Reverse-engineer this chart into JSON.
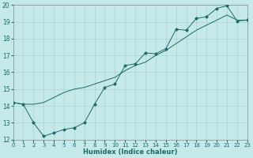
{
  "xlabel": "Humidex (Indice chaleur)",
  "xlim": [
    0,
    23
  ],
  "ylim": [
    12,
    20
  ],
  "xticks": [
    0,
    1,
    2,
    3,
    4,
    5,
    6,
    7,
    8,
    9,
    10,
    11,
    12,
    13,
    14,
    15,
    16,
    17,
    18,
    19,
    20,
    21,
    22,
    23
  ],
  "yticks": [
    12,
    13,
    14,
    15,
    16,
    17,
    18,
    19,
    20
  ],
  "background_color": "#c5e8e8",
  "grid_color": "#aacccc",
  "line_color": "#1a6b6b",
  "line1_x": [
    0,
    1,
    2,
    3,
    4,
    5,
    6,
    7,
    8,
    9,
    10,
    11,
    12,
    13,
    14,
    15,
    16,
    17,
    18,
    19,
    20,
    21,
    22,
    23
  ],
  "line1_y": [
    14.2,
    14.1,
    13.0,
    12.2,
    12.4,
    12.6,
    12.7,
    13.0,
    14.1,
    15.1,
    15.3,
    16.4,
    16.5,
    17.15,
    17.1,
    17.4,
    18.55,
    18.5,
    19.2,
    19.3,
    19.8,
    19.95,
    19.05,
    19.1
  ],
  "line2_x": [
    0,
    1,
    2,
    3,
    4,
    5,
    6,
    7,
    8,
    9,
    10,
    11,
    12,
    13,
    14,
    15,
    16,
    17,
    18,
    19,
    20,
    21,
    22,
    23
  ],
  "line2_y": [
    14.2,
    14.1,
    14.1,
    14.2,
    14.5,
    14.8,
    15.0,
    15.1,
    15.3,
    15.5,
    15.7,
    16.1,
    16.4,
    16.6,
    17.0,
    17.3,
    17.7,
    18.1,
    18.5,
    18.8,
    19.1,
    19.4,
    19.1,
    19.1
  ]
}
